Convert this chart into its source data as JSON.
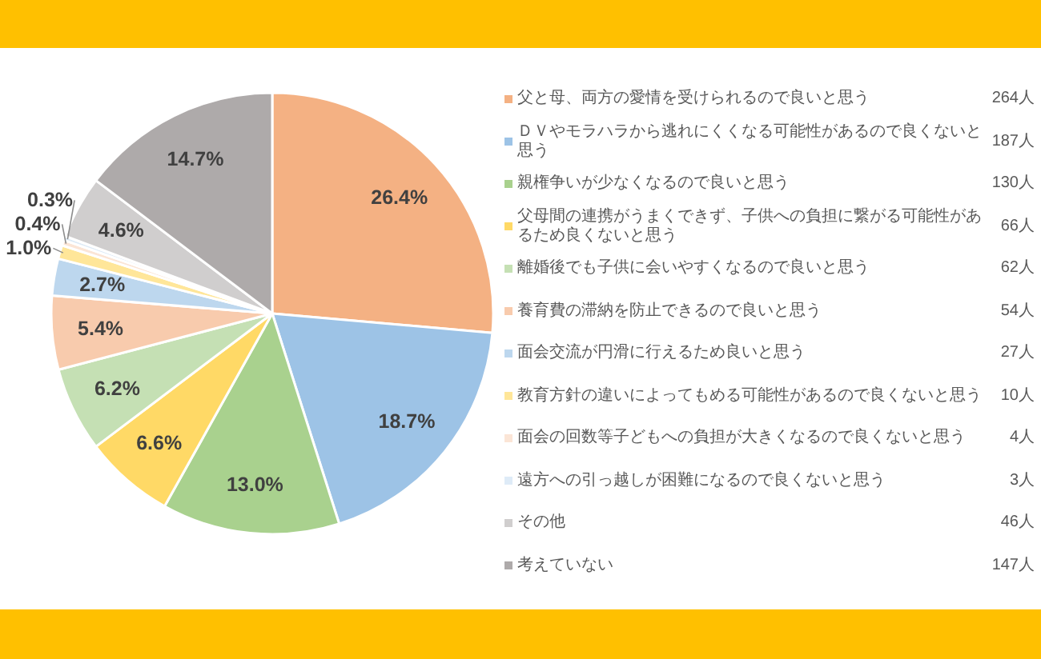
{
  "chart_data": {
    "type": "pie",
    "categories": [
      "父と母、両方の愛情を受けられるので良いと思う",
      "ＤＶやモラハラから逃れにくくなる可能性があるので良くないと思う",
      "親権争いが少なくなるので良いと思う",
      "父母間の連携がうまくできず、子供への負担に繋がる可能性があるため良くないと思う",
      "離婚後でも子供に会いやすくなるので良いと思う",
      "養育費の滞納を防止できるので良いと思う",
      "面会交流が円滑に行えるため良いと思う",
      "教育方針の違いによってもめる可能性があるので良くないと思う",
      "面会の回数等子どもへの負担が大きくなるので良くないと思う",
      "遠方への引っ越しが困難になるので良くないと思う",
      "その他",
      "考えていない"
    ],
    "values": [
      26.4,
      18.7,
      13.0,
      6.6,
      6.2,
      5.4,
      2.7,
      1.0,
      0.4,
      0.3,
      4.6,
      14.7
    ],
    "colors": [
      "#f4b183",
      "#9dc3e6",
      "#a9d18e",
      "#ffd966",
      "#c5e0b4",
      "#f8cbad",
      "#bdd7ee",
      "#ffe699",
      "#fbe5d6",
      "#deebf7",
      "#d0cece",
      "#aeaaaa"
    ],
    "value_labels": [
      "26.4%",
      "18.7%",
      "13.0%",
      "6.6%",
      "6.2%",
      "5.4%",
      "2.7%",
      "1.0%",
      "0.4%",
      "0.3%",
      "4.6%",
      "14.7%"
    ],
    "annotations": [
      "264人",
      "187人",
      "130人",
      "66人",
      "62人",
      "54人",
      "27人",
      "10人",
      "4人",
      "3人",
      "46人",
      "147人"
    ],
    "legend": "right"
  }
}
